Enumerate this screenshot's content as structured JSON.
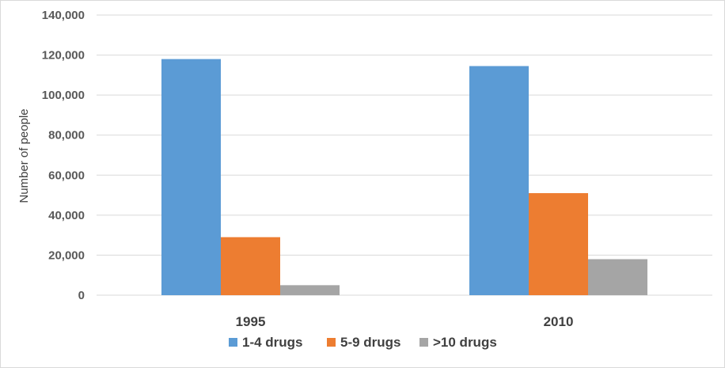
{
  "chart_data": {
    "type": "bar",
    "categories": [
      "1995",
      "2010"
    ],
    "series": [
      {
        "name": "1-4 drugs",
        "values": [
          118000,
          114500
        ],
        "color": "#5B9BD5"
      },
      {
        "name": "5-9 drugs",
        "values": [
          29000,
          51000
        ],
        "color": "#ED7D31"
      },
      {
        "name": ">10 drugs",
        "values": [
          5000,
          18000
        ],
        "color": "#A5A5A5"
      }
    ],
    "ylabel": "Number of people",
    "ylim": [
      0,
      140000
    ],
    "yticks": [
      0,
      20000,
      40000,
      60000,
      80000,
      100000,
      120000,
      140000
    ],
    "ytick_labels": [
      "0",
      "20,000",
      "40,000",
      "60,000",
      "80,000",
      "100,000",
      "120,000",
      "140,000"
    ],
    "grid": true,
    "legend_position": "bottom"
  }
}
